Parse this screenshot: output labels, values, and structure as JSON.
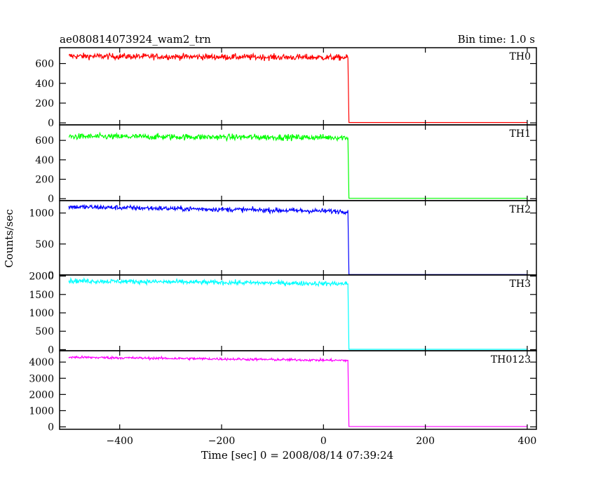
{
  "chart_data": {
    "type": "line",
    "title": "ae080814073924_wam2_trn",
    "subtitle": "Bin time: 1.0 s",
    "xlabel": "Time [sec] 0 = 2008/08/14 07:39:24",
    "ylabel": "Counts/sec",
    "xlim": [
      -518,
      418
    ],
    "xticks": [
      -400,
      -200,
      0,
      200,
      400
    ],
    "step_time": 50,
    "panels": [
      {
        "name": "TH0",
        "color": "#ff0000",
        "ylim": [
          -20,
          760
        ],
        "yticks": [
          0,
          200,
          400,
          600
        ],
        "level_start": 675,
        "level_end": 660,
        "noise": 22,
        "after_level": 4
      },
      {
        "name": "TH1",
        "color": "#00ff00",
        "ylim": [
          -20,
          760
        ],
        "yticks": [
          0,
          200,
          400,
          600
        ],
        "level_start": 640,
        "level_end": 630,
        "noise": 22,
        "after_level": 4
      },
      {
        "name": "TH2",
        "color": "#0000ff",
        "ylim": [
          0,
          1200
        ],
        "yticks": [
          0,
          500,
          1000
        ],
        "level_start": 1100,
        "level_end": 1025,
        "noise": 28,
        "after_level": 8
      },
      {
        "name": "TH3",
        "color": "#00ffff",
        "ylim": [
          -30,
          2030
        ],
        "yticks": [
          0,
          500,
          1000,
          1500,
          2000
        ],
        "level_start": 1870,
        "level_end": 1790,
        "noise": 45,
        "after_level": 8
      },
      {
        "name": "TH0123",
        "color": "#ff00ff",
        "ylim": [
          -150,
          4700
        ],
        "yticks": [
          0,
          1000,
          2000,
          3000,
          4000
        ],
        "level_start": 4300,
        "level_end": 4100,
        "noise": 55,
        "after_level": 20
      }
    ]
  }
}
